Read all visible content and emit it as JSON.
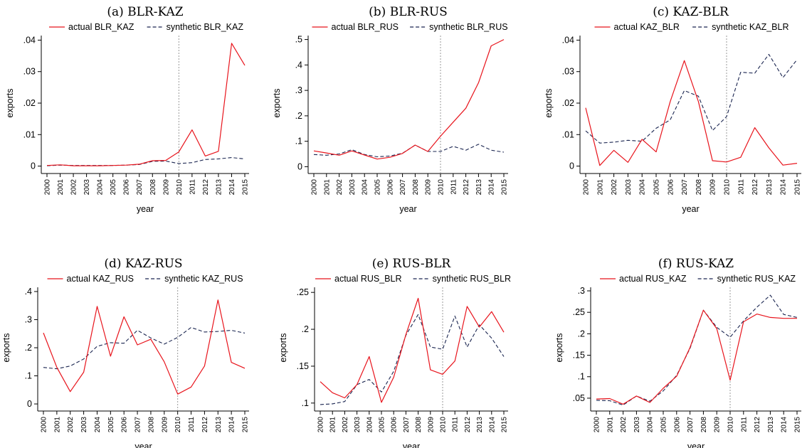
{
  "chart_data": [
    {
      "type": "line",
      "title": "(a) BLR-KAZ",
      "xlabel": "year",
      "ylabel": "exports",
      "x": [
        2000,
        2001,
        2002,
        2003,
        2004,
        2005,
        2006,
        2007,
        2008,
        2009,
        2010,
        2011,
        2012,
        2013,
        2014,
        2015
      ],
      "x_tick_labels": [
        "2000",
        "2001",
        "2002",
        "2003",
        "2004",
        "2005",
        "2006",
        "2007",
        "2008",
        "2009",
        "2010",
        "2011",
        "2012",
        "2013",
        "2014",
        "2015"
      ],
      "ylim": [
        -0.001,
        0.041
      ],
      "y_ticks": [
        0,
        0.01,
        0.02,
        0.03,
        0.04
      ],
      "y_tick_labels": [
        "0",
        ".01",
        ".02",
        ".03",
        ".04"
      ],
      "vline_x": 2010,
      "grid": false,
      "legend_position": "top",
      "series": [
        {
          "name": "actual BLR_KAZ",
          "color": "#e8141c",
          "dash": "solid",
          "values": [
            0.0002,
            0.0004,
            0.0001,
            0.0001,
            0.0001,
            0.0002,
            0.0003,
            0.0006,
            0.0017,
            0.0018,
            0.0045,
            0.0115,
            0.0032,
            0.0047,
            0.039,
            0.032
          ]
        },
        {
          "name": "synthetic BLR_KAZ",
          "color": "#1a2550",
          "dash": "dashed",
          "values": [
            0.0001,
            0.0003,
            0.0002,
            0.0002,
            0.0002,
            0.0002,
            0.0003,
            0.0005,
            0.0015,
            0.0016,
            0.0008,
            0.0011,
            0.0021,
            0.0023,
            0.0027,
            0.0023
          ]
        }
      ]
    },
    {
      "type": "line",
      "title": "(b) BLR-RUS",
      "xlabel": "year",
      "ylabel": "exports",
      "x": [
        2000,
        2001,
        2002,
        2003,
        2004,
        2005,
        2006,
        2007,
        2008,
        2009,
        2010,
        2011,
        2012,
        2013,
        2014,
        2015
      ],
      "x_tick_labels": [
        "2000",
        "2001",
        "2002",
        "2003",
        "2004",
        "2005",
        "2006",
        "2007",
        "2008",
        "2009",
        "2010",
        "2011",
        "2012",
        "2013",
        "2014",
        "2015"
      ],
      "ylim": [
        -0.01,
        0.51
      ],
      "y_ticks": [
        0,
        0.1,
        0.2,
        0.3,
        0.4,
        0.5
      ],
      "y_tick_labels": [
        "0",
        ".1",
        ".2",
        ".3",
        ".4",
        ".5"
      ],
      "vline_x": 2010,
      "grid": false,
      "legend_position": "top",
      "series": [
        {
          "name": "actual BLR_RUS",
          "color": "#e8141c",
          "dash": "solid",
          "values": [
            0.062,
            0.054,
            0.045,
            0.062,
            0.046,
            0.03,
            0.037,
            0.052,
            0.085,
            0.06,
            0.12,
            0.175,
            0.23,
            0.33,
            0.475,
            0.5
          ]
        },
        {
          "name": "synthetic BLR_RUS",
          "color": "#1a2550",
          "dash": "dashed",
          "values": [
            0.048,
            0.045,
            0.05,
            0.067,
            0.048,
            0.039,
            0.042,
            0.053,
            0.085,
            0.06,
            0.06,
            0.08,
            0.065,
            0.088,
            0.065,
            0.057
          ]
        }
      ]
    },
    {
      "type": "line",
      "title": "(c) KAZ-BLR",
      "xlabel": "year",
      "ylabel": "exports",
      "x": [
        2000,
        2001,
        2002,
        2003,
        2004,
        2005,
        2006,
        2007,
        2008,
        2009,
        2010,
        2011,
        2012,
        2013,
        2014,
        2015
      ],
      "x_tick_labels": [
        "2000",
        "2001",
        "2002",
        "2003",
        "2004",
        "2005",
        "2006",
        "2007",
        "2008",
        "2009",
        "2010",
        "2011",
        "2012",
        "2013",
        "2014",
        "2015"
      ],
      "ylim": [
        -0.001,
        0.041
      ],
      "y_ticks": [
        0,
        0.01,
        0.02,
        0.03,
        0.04
      ],
      "y_tick_labels": [
        "0",
        ".01",
        ".02",
        ".03",
        ".04"
      ],
      "vline_x": 2010,
      "grid": false,
      "legend_position": "top",
      "series": [
        {
          "name": "actual KAZ_BLR",
          "color": "#e8141c",
          "dash": "solid",
          "values": [
            0.0185,
            0.0002,
            0.005,
            0.0012,
            0.0085,
            0.0045,
            0.0205,
            0.0335,
            0.0205,
            0.0017,
            0.0013,
            0.0028,
            0.0122,
            0.0058,
            0.0003,
            0.0009
          ]
        },
        {
          "name": "synthetic KAZ_BLR",
          "color": "#1a2550",
          "dash": "dashed",
          "values": [
            0.0112,
            0.0073,
            0.0076,
            0.0082,
            0.0079,
            0.012,
            0.0147,
            0.024,
            0.0222,
            0.0113,
            0.0157,
            0.0298,
            0.0295,
            0.0355,
            0.0281,
            0.0338
          ]
        }
      ]
    },
    {
      "type": "line",
      "title": "(d) KAZ-RUS",
      "xlabel": "year",
      "ylabel": "exports",
      "x": [
        2000,
        2001,
        2002,
        2003,
        2004,
        2005,
        2006,
        2007,
        2008,
        2009,
        2010,
        2011,
        2012,
        2013,
        2014,
        2015
      ],
      "x_tick_labels": [
        "2000",
        "2001",
        "2002",
        "2003",
        "2004",
        "2005",
        "2006",
        "2007",
        "2008",
        "2009",
        "2010",
        "2011",
        "2012",
        "2013",
        "2014",
        "2015"
      ],
      "ylim": [
        -0.01,
        0.41
      ],
      "y_ticks": [
        0,
        0.1,
        0.2,
        0.3,
        0.4
      ],
      "y_tick_labels": [
        "0",
        ".1",
        ".2",
        ".3",
        ".4"
      ],
      "vline_x": 2010,
      "grid": false,
      "legend_position": "top",
      "series": [
        {
          "name": "actual KAZ_RUS",
          "color": "#e8141c",
          "dash": "solid",
          "values": [
            0.253,
            0.13,
            0.044,
            0.113,
            0.347,
            0.17,
            0.31,
            0.21,
            0.23,
            0.15,
            0.035,
            0.06,
            0.135,
            0.37,
            0.148,
            0.127
          ]
        },
        {
          "name": "synthetic KAZ_RUS",
          "color": "#1a2550",
          "dash": "dashed",
          "values": [
            0.13,
            0.125,
            0.135,
            0.16,
            0.205,
            0.218,
            0.216,
            0.262,
            0.235,
            0.213,
            0.237,
            0.272,
            0.256,
            0.258,
            0.262,
            0.252
          ]
        }
      ]
    },
    {
      "type": "line",
      "title": "(e) RUS-BLR",
      "xlabel": "year",
      "ylabel": "exports",
      "x": [
        2000,
        2001,
        2002,
        2003,
        2004,
        2005,
        2006,
        2007,
        2008,
        2009,
        2010,
        2011,
        2012,
        2013,
        2014,
        2015
      ],
      "x_tick_labels": [
        "2000",
        "2001",
        "2002",
        "2003",
        "2004",
        "2005",
        "2006",
        "2007",
        "2008",
        "2009",
        "2010",
        "2011",
        "2012",
        "2013",
        "2014",
        "2015"
      ],
      "ylim": [
        0.095,
        0.255
      ],
      "y_ticks": [
        0.1,
        0.15,
        0.2,
        0.25
      ],
      "y_tick_labels": [
        ".1",
        ".15",
        ".2",
        ".25"
      ],
      "vline_x": 2010,
      "grid": false,
      "legend_position": "top",
      "series": [
        {
          "name": "actual RUS_BLR",
          "color": "#e8141c",
          "dash": "solid",
          "values": [
            0.129,
            0.114,
            0.107,
            0.125,
            0.163,
            0.101,
            0.135,
            0.193,
            0.242,
            0.145,
            0.139,
            0.157,
            0.231,
            0.203,
            0.224,
            0.196
          ]
        },
        {
          "name": "synthetic RUS_BLR",
          "color": "#1a2550",
          "dash": "dashed",
          "values": [
            0.098,
            0.099,
            0.102,
            0.125,
            0.132,
            0.115,
            0.143,
            0.192,
            0.22,
            0.176,
            0.173,
            0.218,
            0.176,
            0.206,
            0.188,
            0.163
          ]
        }
      ]
    },
    {
      "type": "line",
      "title": "(f) RUS-KAZ",
      "xlabel": "year",
      "ylabel": "exports",
      "x": [
        2000,
        2001,
        2002,
        2003,
        2004,
        2005,
        2006,
        2007,
        2008,
        2009,
        2010,
        2011,
        2012,
        2013,
        2014,
        2015
      ],
      "x_tick_labels": [
        "2000",
        "2001",
        "2002",
        "2003",
        "2004",
        "2005",
        "2006",
        "2007",
        "2008",
        "2009",
        "2010",
        "2011",
        "2012",
        "2013",
        "2014",
        "2015"
      ],
      "ylim": [
        0.03,
        0.305
      ],
      "y_ticks": [
        0.05,
        0.1,
        0.15,
        0.2,
        0.25,
        0.3
      ],
      "y_tick_labels": [
        ".05",
        ".1",
        ".15",
        ".2",
        ".25",
        ".3"
      ],
      "vline_x": 2010,
      "grid": false,
      "legend_position": "top",
      "series": [
        {
          "name": "actual RUS_KAZ",
          "color": "#e8141c",
          "dash": "solid",
          "values": [
            0.048,
            0.049,
            0.036,
            0.055,
            0.04,
            0.073,
            0.101,
            0.168,
            0.255,
            0.212,
            0.092,
            0.228,
            0.246,
            0.238,
            0.236,
            0.236
          ]
        },
        {
          "name": "synthetic RUS_KAZ",
          "color": "#1a2550",
          "dash": "dashed",
          "values": [
            0.045,
            0.044,
            0.034,
            0.055,
            0.043,
            0.067,
            0.103,
            0.166,
            0.255,
            0.215,
            0.192,
            0.23,
            0.262,
            0.29,
            0.245,
            0.238
          ]
        }
      ]
    }
  ]
}
